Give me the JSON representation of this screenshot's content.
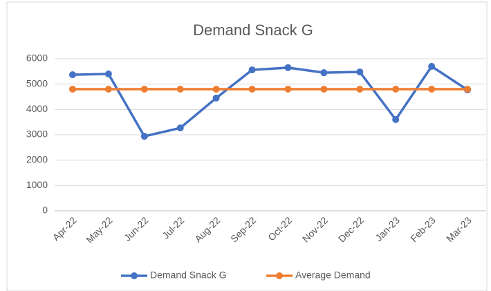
{
  "chart_data": {
    "type": "line",
    "title": "Demand Snack G",
    "categories": [
      "Apr-22",
      "May-22",
      "Jun-22",
      "Jul-22",
      "Aug-22",
      "Sep-22",
      "Oct-22",
      "Nov-22",
      "Dec-22",
      "Jan-23",
      "Feb-23",
      "Mar-23"
    ],
    "series": [
      {
        "name": "Demand Snack G",
        "color": "#4472c4",
        "values": [
          5370,
          5400,
          2940,
          3270,
          4450,
          5560,
          5650,
          5450,
          5480,
          3600,
          5700,
          4770
        ]
      },
      {
        "name": "Average Demand",
        "color": "#ed7d31",
        "values": [
          4800,
          4800,
          4800,
          4800,
          4800,
          4800,
          4800,
          4800,
          4800,
          4800,
          4800,
          4800
        ]
      }
    ],
    "ylim": [
      0,
      6000
    ],
    "yticks": [
      0,
      1000,
      2000,
      3000,
      4000,
      5000,
      6000
    ],
    "grid": true,
    "legend": "bottom"
  }
}
